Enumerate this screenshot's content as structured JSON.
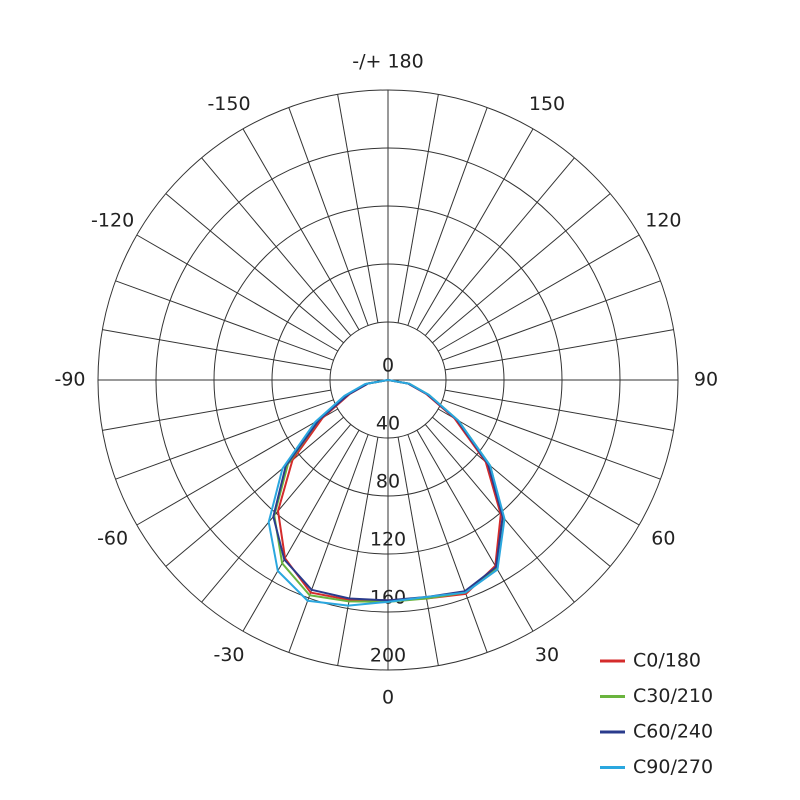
{
  "chart_data": {
    "type": "polar",
    "x": [
      -90,
      -80,
      -70,
      -60,
      -50,
      -40,
      -30,
      -20,
      -10,
      0,
      10,
      20,
      30,
      40,
      50,
      60,
      70,
      80,
      90
    ],
    "series": [
      {
        "name": "C0/180",
        "color": "#d42b2b",
        "values": [
          0,
          14,
          28,
          52,
          86,
          118,
          142,
          156,
          154,
          152,
          153,
          157,
          148,
          121,
          88,
          53,
          28,
          14,
          0
        ]
      },
      {
        "name": "C30/210",
        "color": "#6ab43e",
        "values": [
          0,
          15,
          30,
          55,
          90,
          122,
          146,
          158,
          155,
          153,
          153,
          156,
          150,
          124,
          92,
          56,
          30,
          15,
          0
        ]
      },
      {
        "name": "C60/240",
        "color": "#2a3b8c",
        "values": [
          0,
          14,
          29,
          55,
          92,
          123,
          143,
          154,
          153,
          152,
          152,
          155,
          149,
          123,
          90,
          55,
          29,
          14,
          0
        ]
      },
      {
        "name": "C90/270",
        "color": "#2aa7df",
        "values": [
          0,
          16,
          32,
          58,
          95,
          128,
          152,
          162,
          158,
          153,
          152,
          156,
          151,
          125,
          92,
          56,
          30,
          15,
          0
        ]
      }
    ],
    "ylim": [
      0,
      200
    ],
    "yticks": [
      0,
      40,
      80,
      120,
      160,
      200
    ],
    "xticks": [
      -150,
      -120,
      -90,
      -60,
      -30,
      0,
      30,
      60,
      90,
      120,
      150,
      {
        "value": 180,
        "label": "-/+ 180"
      }
    ],
    "xticks_minor": [
      -170,
      -160,
      -140,
      -130,
      -110,
      -100,
      -80,
      -70,
      -50,
      -40,
      -20,
      -10,
      10,
      20,
      40,
      50,
      70,
      80,
      100,
      110,
      130,
      140,
      160,
      170
    ],
    "legend": "lower right"
  }
}
